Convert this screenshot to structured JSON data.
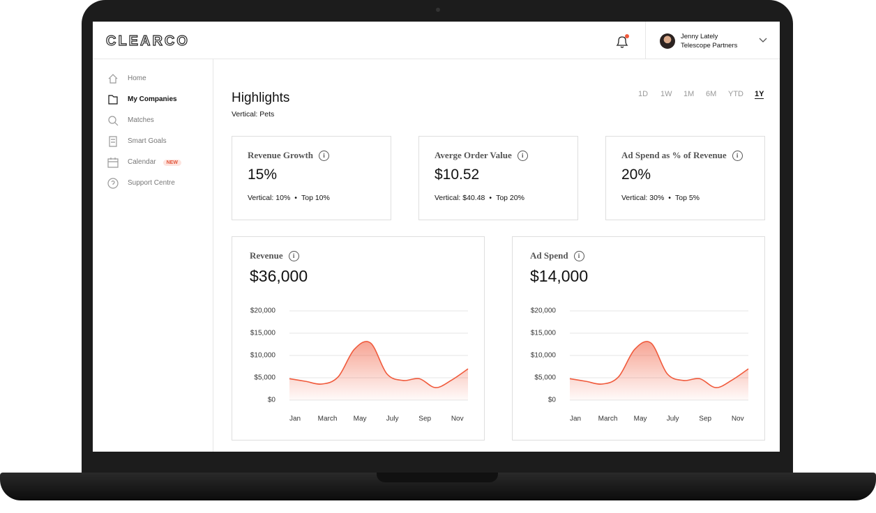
{
  "header": {
    "logo": "CLEARCO",
    "user_name": "Jenny Lately",
    "user_company": "Telescope Partners"
  },
  "nav": [
    {
      "label": "Home"
    },
    {
      "label": "My Companies",
      "active": true
    },
    {
      "label": "Matches"
    },
    {
      "label": "Smart Goals"
    },
    {
      "label": "Calendar",
      "badge": "NEW"
    },
    {
      "label": "Support Centre"
    }
  ],
  "page": {
    "title": "Highlights",
    "subtitle": "Vertical: Pets",
    "ranges": [
      "1D",
      "1W",
      "1M",
      "6M",
      "YTD",
      "1Y"
    ],
    "active_range": "1Y"
  },
  "cards": [
    {
      "title": "Revenue Growth",
      "value": "15%",
      "vertical": "Vertical: 10%",
      "top": "Top 10%"
    },
    {
      "title": "Averge Order Value",
      "value": "$10.52",
      "vertical": "Vertical: $40.48",
      "top": "Top 20%"
    },
    {
      "title": "Ad Spend as % of Revenue",
      "value": "20%",
      "vertical": "Vertical: 30%",
      "top": "Top 5%"
    }
  ],
  "charts": [
    {
      "type": "area",
      "title": "Revenue",
      "value": "$36,000",
      "color": "#f05a3c",
      "categories": [
        "Jan",
        null,
        "March",
        null,
        "May",
        null,
        "July",
        null,
        "Sep",
        null,
        "Nov",
        null
      ],
      "values": [
        4800,
        4200,
        3600,
        5200,
        11400,
        12800,
        5900,
        4400,
        4800,
        2800,
        4500,
        7000
      ],
      "ylim": [
        0,
        20000
      ],
      "yticks": [
        {
          "value": 0,
          "label": "$0"
        },
        {
          "value": 5000,
          "label": "$5,000"
        },
        {
          "value": 10000,
          "label": "$10,000"
        },
        {
          "value": 15000,
          "label": "$15,000"
        },
        {
          "value": 20000,
          "label": "$20,000"
        }
      ],
      "grid": true
    },
    {
      "type": "area",
      "title": "Ad Spend",
      "value": "$14,000",
      "color": "#f05a3c",
      "categories": [
        "Jan",
        null,
        "March",
        null,
        "May",
        null,
        "July",
        null,
        "Sep",
        null,
        "Nov",
        null
      ],
      "values": [
        4800,
        4200,
        3600,
        5200,
        11400,
        12800,
        5900,
        4400,
        4800,
        2800,
        4500,
        7000
      ],
      "ylim": [
        0,
        20000
      ],
      "yticks": [
        {
          "value": 0,
          "label": "$0"
        },
        {
          "value": 5000,
          "label": "$5,000"
        },
        {
          "value": 10000,
          "label": "$10,000"
        },
        {
          "value": 15000,
          "label": "$15,000"
        },
        {
          "value": 20000,
          "label": "$20,000"
        }
      ],
      "grid": true
    }
  ]
}
